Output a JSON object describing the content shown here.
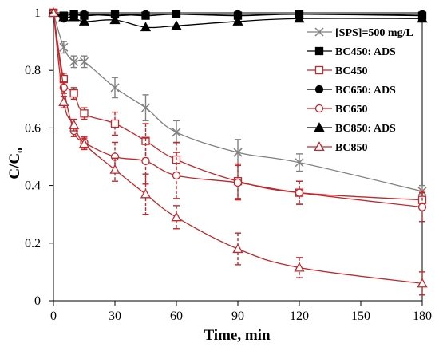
{
  "chart_data": {
    "type": "line",
    "title": "",
    "xlabel": "Time, min",
    "ylabel": "C/C",
    "ylabel_subscript": "o",
    "xlim": [
      0,
      180
    ],
    "ylim": [
      0,
      1
    ],
    "xticks": [
      0,
      30,
      60,
      90,
      120,
      150,
      180
    ],
    "yticks": [
      0,
      0.2,
      0.4,
      0.6,
      0.8,
      1
    ],
    "xtick_labels": [
      "0",
      "30",
      "60",
      "90",
      "120",
      "150",
      "180"
    ],
    "ytick_labels": [
      "0",
      "0.2",
      "0.4",
      "0.6",
      "0.8",
      "1"
    ],
    "grid": false,
    "legend_position": "top-right",
    "series": [
      {
        "name": "[SPS]=500 mg/L",
        "color": "#808080",
        "marker": "x",
        "filled": false,
        "error_style": "solid",
        "x": [
          0,
          5,
          10,
          15,
          30,
          45,
          60,
          90,
          120,
          180
        ],
        "y": [
          1.0,
          0.88,
          0.83,
          0.83,
          0.74,
          0.67,
          0.585,
          0.515,
          0.48,
          0.38
        ],
        "err": [
          0,
          0.02,
          0.02,
          0.02,
          0.035,
          0.045,
          0.04,
          0.045,
          0.03,
          0.02
        ]
      },
      {
        "name": "BC450: ADS",
        "color": "#000000",
        "marker": "square",
        "filled": true,
        "error_style": "none",
        "x": [
          0,
          5,
          10,
          15,
          30,
          45,
          60,
          90,
          120,
          180
        ],
        "y": [
          1.0,
          0.99,
          0.995,
          0.99,
          0.995,
          0.99,
          0.995,
          0.99,
          0.995,
          0.99
        ],
        "err": []
      },
      {
        "name": "BC450",
        "color": "#c0282d",
        "marker": "square",
        "filled": false,
        "error_style": "dashed",
        "x": [
          0,
          5,
          10,
          15,
          30,
          45,
          60,
          90,
          120,
          180
        ],
        "y": [
          1.0,
          0.77,
          0.72,
          0.65,
          0.615,
          0.555,
          0.49,
          0.415,
          0.375,
          0.35
        ],
        "err": [
          0,
          0.02,
          0.02,
          0.02,
          0.04,
          0.06,
          0.06,
          0.06,
          0.04,
          0.03
        ]
      },
      {
        "name": "BC650: ADS",
        "color": "#000000",
        "marker": "circle",
        "filled": true,
        "error_style": "none",
        "x": [
          0,
          5,
          10,
          15,
          30,
          45,
          60,
          90,
          120,
          180
        ],
        "y": [
          1.0,
          0.98,
          0.99,
          0.995,
          0.99,
          0.995,
          0.995,
          0.995,
          0.995,
          0.995
        ],
        "err": []
      },
      {
        "name": "BC650",
        "color": "#c0282d",
        "marker": "circle",
        "filled": false,
        "error_style": "dashed",
        "x": [
          0,
          5,
          10,
          15,
          30,
          45,
          60,
          90,
          120,
          180
        ],
        "y": [
          1.0,
          0.74,
          0.59,
          0.55,
          0.5,
          0.485,
          0.435,
          0.41,
          0.375,
          0.325
        ],
        "err": [
          0,
          0.02,
          0.02,
          0.02,
          0.05,
          0.08,
          0.08,
          0.06,
          0.04,
          0.05
        ]
      },
      {
        "name": "BC850: ADS",
        "color": "#000000",
        "marker": "triangle",
        "filled": true,
        "error_style": "none",
        "x": [
          0,
          5,
          10,
          15,
          30,
          45,
          60,
          90,
          120,
          180
        ],
        "y": [
          1.0,
          0.985,
          0.985,
          0.97,
          0.975,
          0.95,
          0.955,
          0.97,
          0.98,
          0.98
        ],
        "err": []
      },
      {
        "name": "BC850",
        "color": "#c0282d",
        "marker": "triangle",
        "filled": false,
        "error_style": "dashed",
        "x": [
          0,
          5,
          10,
          15,
          30,
          45,
          60,
          90,
          120,
          180
        ],
        "y": [
          1.0,
          0.69,
          0.61,
          0.545,
          0.455,
          0.37,
          0.29,
          0.18,
          0.115,
          0.06
        ],
        "err": [
          0,
          0.02,
          0.02,
          0.02,
          0.04,
          0.07,
          0.04,
          0.055,
          0.035,
          0.04
        ]
      }
    ]
  }
}
